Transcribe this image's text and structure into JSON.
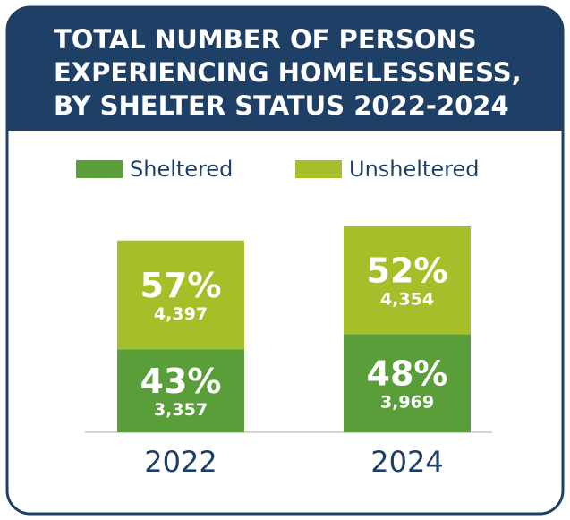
{
  "chart_data": {
    "type": "stacked_bar",
    "title": [
      "TOTAL NUMBER OF PERSONS",
      "EXPERIENCING HOMELESSNESS,",
      "BY SHELTER STATUS 2022-2024"
    ],
    "categories": [
      "2022",
      "2024"
    ],
    "series": [
      {
        "name": "Sheltered",
        "color": "#5a9e3a",
        "values": [
          3357,
          3969
        ],
        "value_labels": [
          "3,357",
          "3,969"
        ],
        "shares": [
          43,
          48
        ],
        "share_labels": [
          "43%",
          "48%"
        ]
      },
      {
        "name": "Unsheltered",
        "color": "#a5bf2b",
        "values": [
          4397,
          4354
        ],
        "value_labels": [
          "4,397",
          "4,354"
        ],
        "shares": [
          57,
          52
        ],
        "share_labels": [
          "57%",
          "52%"
        ]
      }
    ]
  }
}
